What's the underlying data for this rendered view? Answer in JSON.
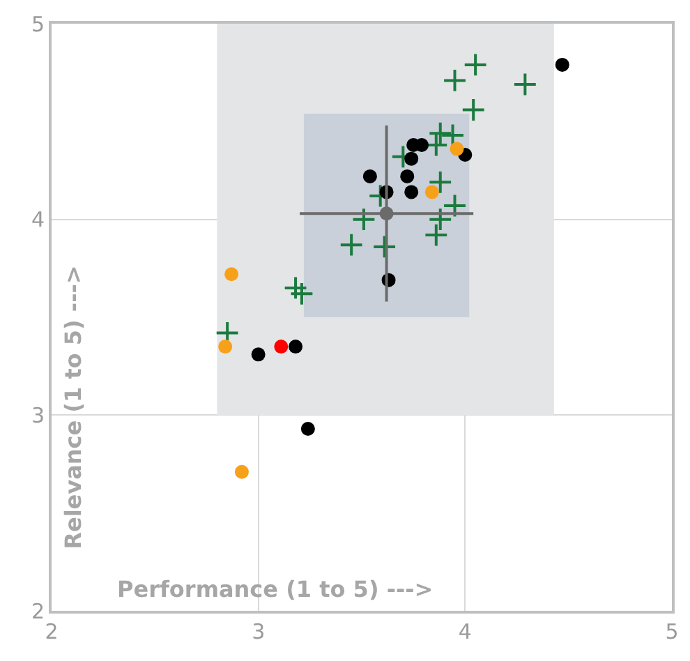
{
  "chart_data": {
    "type": "scatter",
    "xlabel": "Performance (1 to 5) --->",
    "ylabel": "Relevance (1 to 5) --->",
    "xlim": [
      2,
      5
    ],
    "ylim": [
      2,
      5
    ],
    "xticks": [
      2,
      3,
      4,
      5
    ],
    "yticks": [
      2,
      3,
      4,
      5
    ],
    "grid": true,
    "series": [
      {
        "type": "line",
        "color": "#e4e5e7",
        "x": [
          2.8,
          4.43
        ],
        "values": [
          null,
          null
        ],
        "lower": [
          3.0,
          3.0
        ],
        "upper": [
          5.0,
          5.0
        ]
      },
      {
        "type": "line",
        "color": "#c9d0d9",
        "x": [
          3.22,
          4.02
        ],
        "values": [
          null,
          null
        ],
        "lower": [
          3.5,
          3.5
        ],
        "upper": [
          4.54,
          4.54
        ]
      },
      {
        "color": "#1b7a3e",
        "marker": "cross",
        "x": [
          4.05,
          3.95,
          4.29,
          4.04,
          3.88,
          3.94,
          3.86,
          3.7,
          3.88,
          3.59,
          3.95,
          3.51,
          3.88,
          3.86,
          3.45,
          3.61,
          3.18,
          3.21,
          2.85
        ],
        "values": [
          4.79,
          4.71,
          4.69,
          4.56,
          4.44,
          4.43,
          4.38,
          4.32,
          4.19,
          4.12,
          4.07,
          4.0,
          4.0,
          3.92,
          3.87,
          3.86,
          3.65,
          3.62,
          3.42
        ]
      },
      {
        "color": "#000000",
        "marker": "circle",
        "x": [
          4.47,
          3.75,
          3.79,
          3.74,
          4.0,
          3.54,
          3.72,
          3.62,
          3.74,
          3.63,
          3.0,
          3.18,
          3.24
        ],
        "values": [
          4.79,
          4.38,
          4.38,
          4.31,
          4.33,
          4.22,
          4.22,
          4.14,
          4.14,
          3.69,
          3.31,
          3.35,
          2.93
        ]
      },
      {
        "color": "#f7a11a",
        "marker": "circle",
        "x": [
          3.96,
          3.84,
          2.87,
          2.84,
          2.92
        ],
        "values": [
          4.36,
          4.14,
          3.72,
          3.35,
          2.71
        ]
      },
      {
        "color": "#ff0000",
        "marker": "circle",
        "x": [
          3.11
        ],
        "values": [
          3.35
        ]
      },
      {
        "color": "#6b6b6b",
        "marker": "circle",
        "x": [
          3.62
        ],
        "values": [
          4.03
        ],
        "errors": [
          [
            3.58,
            4.48
          ]
        ],
        "xerrors": [
          [
            3.2,
            4.04
          ]
        ]
      }
    ]
  }
}
